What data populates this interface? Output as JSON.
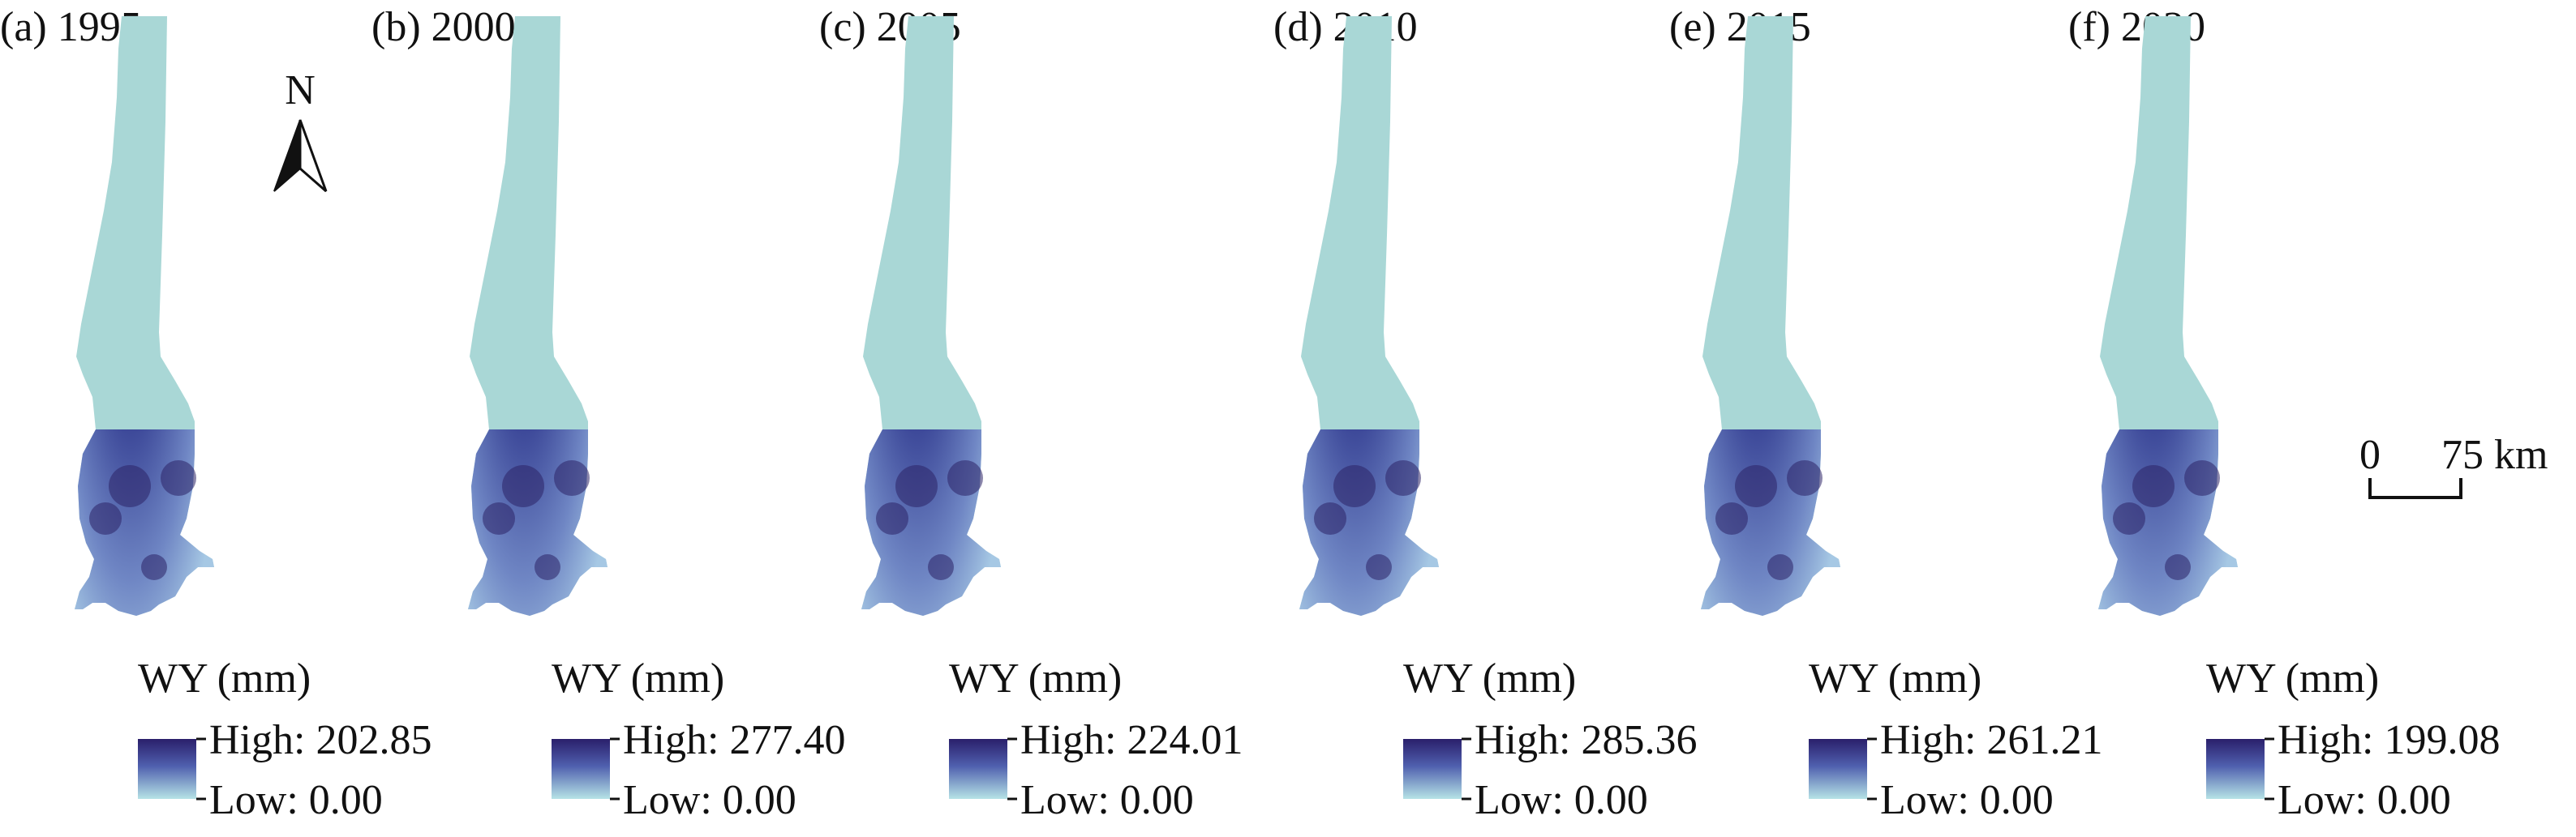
{
  "legend_title": "WY (mm)",
  "colors": {
    "low": "#a9dcdf",
    "high": "#2a1f6b",
    "mid": "#4f5fae",
    "region": "#a9d7d6"
  },
  "panels": [
    {
      "label": "(a) 1995",
      "high": "High: 202.85",
      "low": "Low: 0.00"
    },
    {
      "label": "(b) 2000",
      "high": "High: 277.40",
      "low": "Low: 0.00"
    },
    {
      "label": "(c) 2005",
      "high": "High: 224.01",
      "low": "Low: 0.00"
    },
    {
      "label": "(d) 2010",
      "high": "High: 285.36",
      "low": "Low: 0.00"
    },
    {
      "label": "(e) 2015",
      "high": "High: 261.21",
      "low": "Low: 0.00"
    },
    {
      "label": "(f) 2020",
      "high": "High: 199.08",
      "low": "Low: 0.00"
    }
  ],
  "north_arrow": {
    "letter": "N"
  },
  "scale_bar": {
    "start": "0",
    "end": "75 km"
  }
}
